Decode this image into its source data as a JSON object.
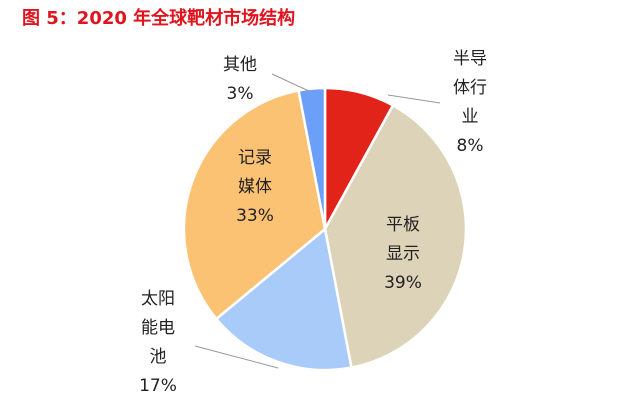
{
  "title": "图 5：2020 年全球靶材市场结构",
  "chart_data": {
    "type": "pie",
    "title": "图 5：2020 年全球靶材市场结构",
    "start": "12 o'clock, clockwise",
    "slices": [
      {
        "label": "半导体行业",
        "label_lines": [
          "半导",
          "体行",
          "业"
        ],
        "value": 8,
        "display": "8%",
        "color": "#e2231a"
      },
      {
        "label": "平板显示",
        "label_lines": [
          "平板",
          "显示"
        ],
        "value": 39,
        "display": "39%",
        "color": "#ddd3b9"
      },
      {
        "label": "太阳能电池",
        "label_lines": [
          "太阳",
          "能电",
          "池"
        ],
        "value": 17,
        "display": "17%",
        "color": "#a9cbfa"
      },
      {
        "label": "记录媒体",
        "label_lines": [
          "记录",
          "媒体"
        ],
        "value": 33,
        "display": "33%",
        "color": "#fcc274"
      },
      {
        "label": "其他",
        "label_lines": [
          "其他"
        ],
        "value": 3,
        "display": "3%",
        "color": "#6b9ff8"
      }
    ]
  }
}
